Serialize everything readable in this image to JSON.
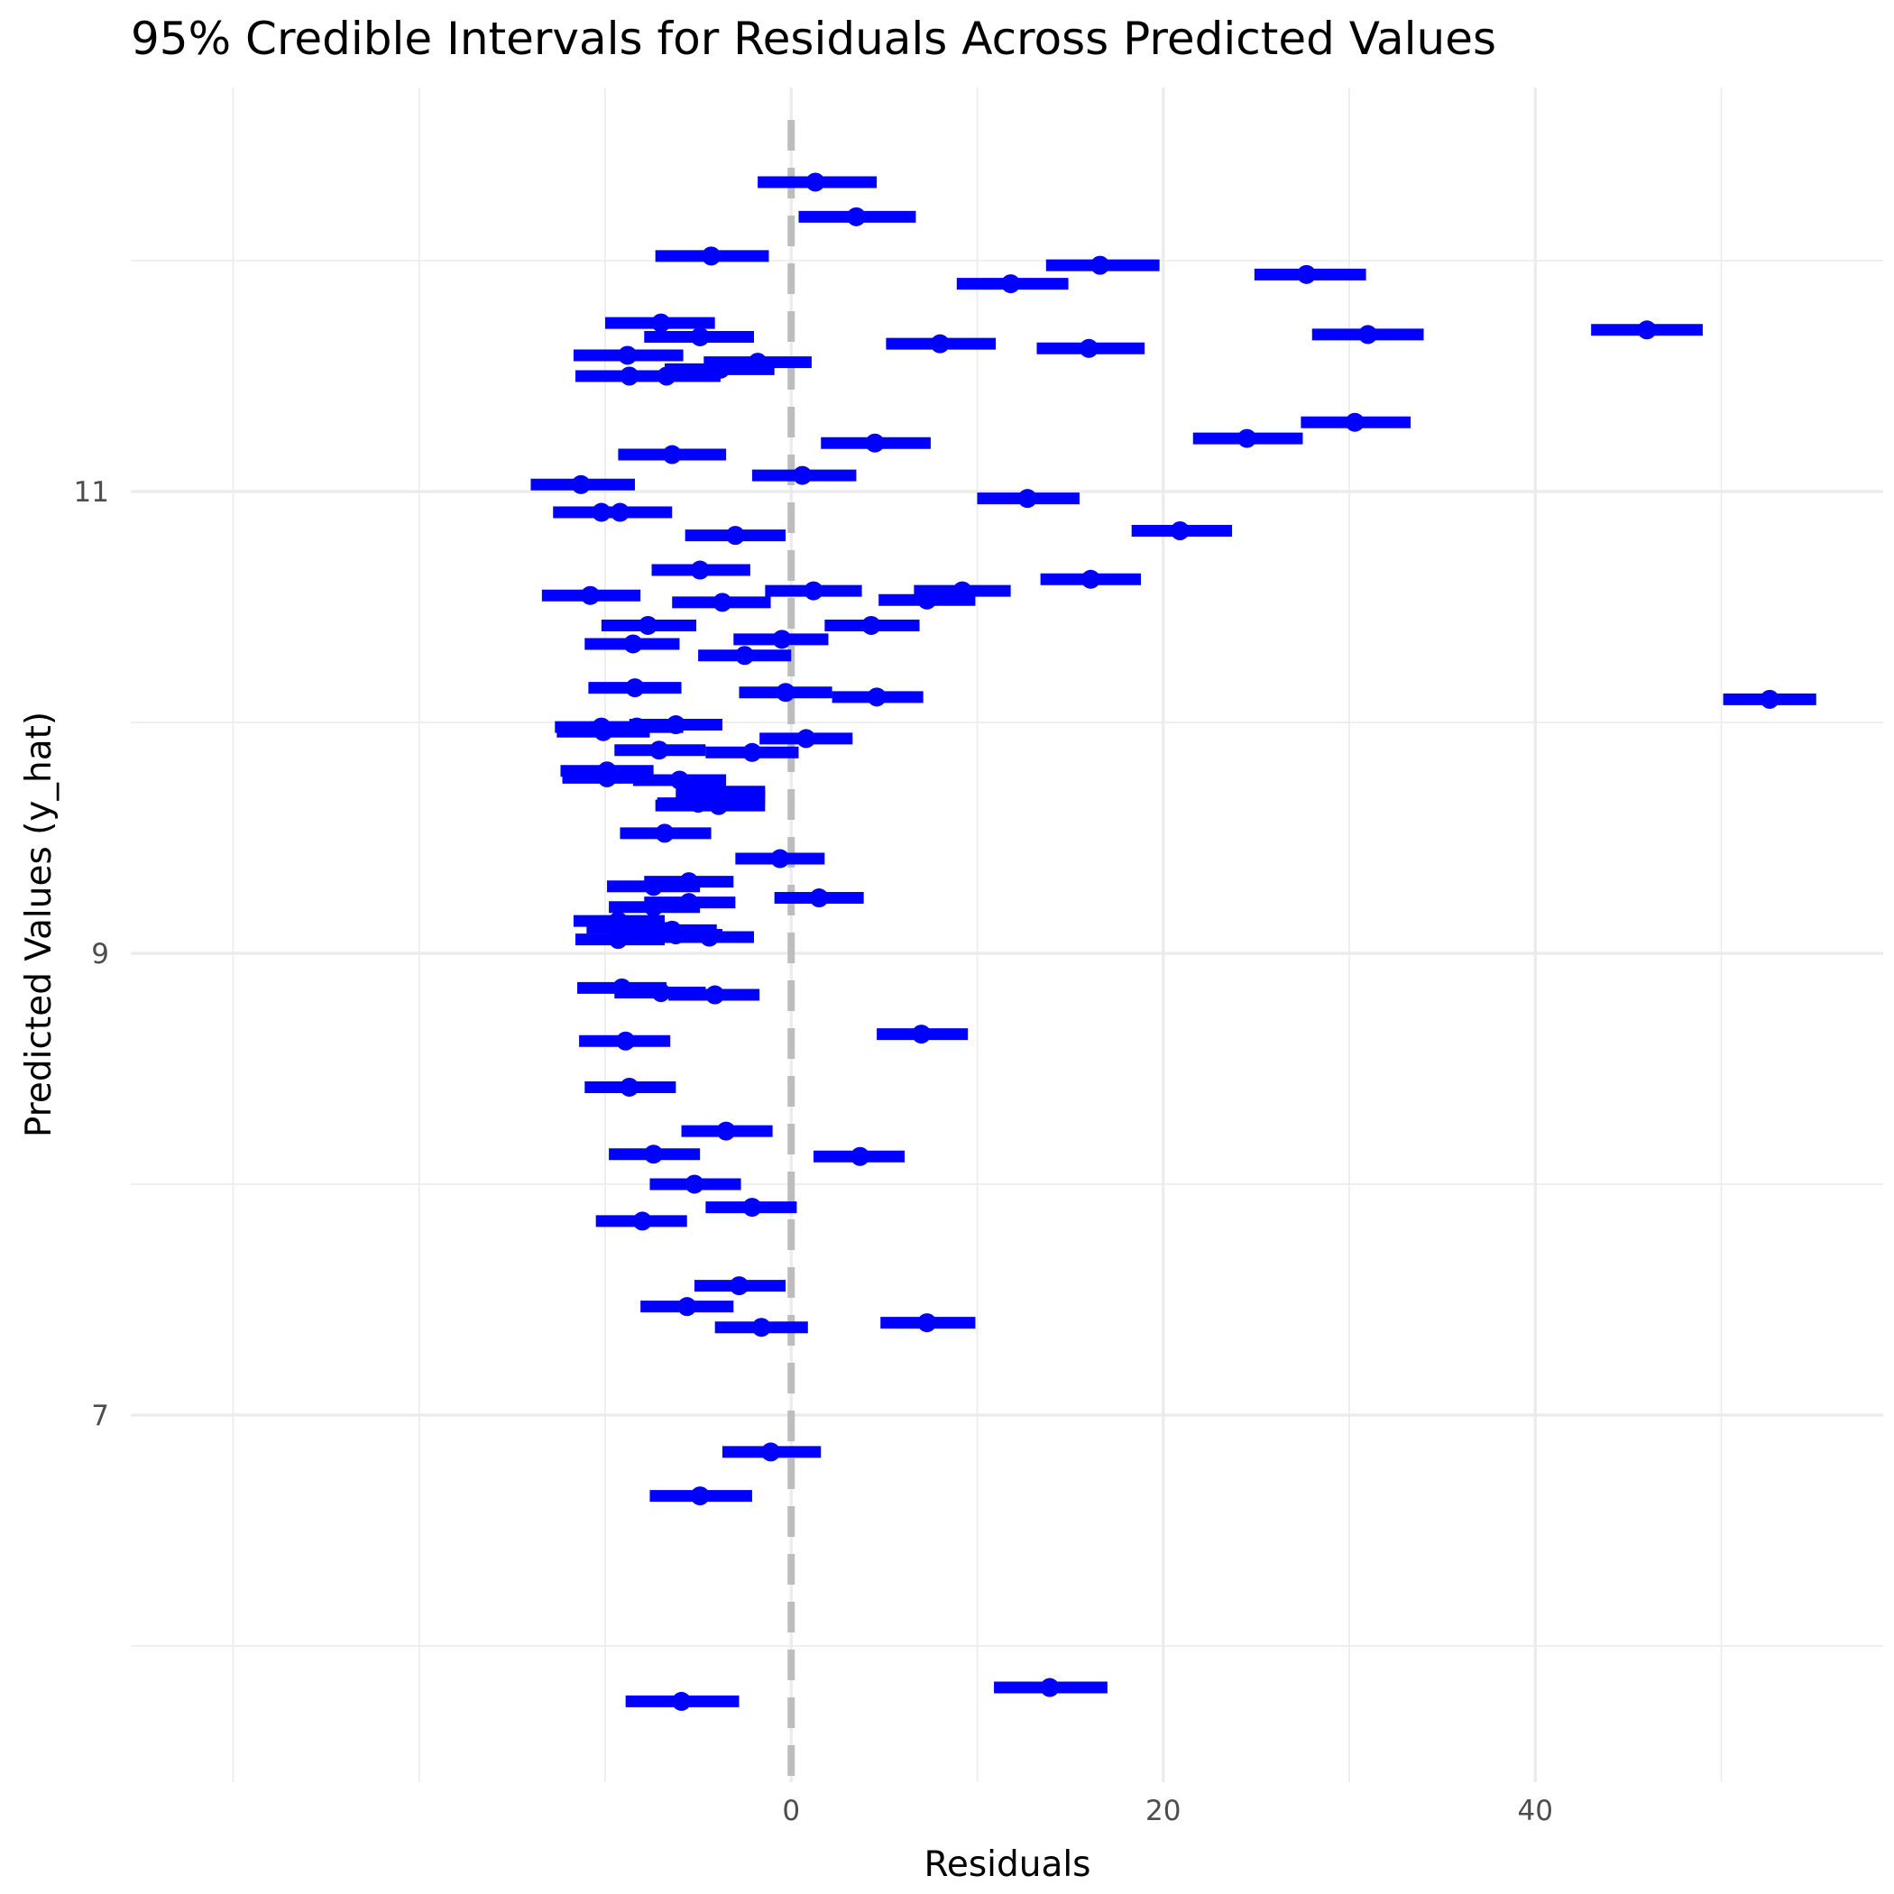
{
  "chart_data": {
    "type": "errorbar",
    "title": "95% Credible Intervals for Residuals Across Predicted Values",
    "xlabel": "Residuals",
    "ylabel": "Predicted Values (y_hat)",
    "x_ticks": [
      0,
      20,
      40
    ],
    "y_ticks": [
      7,
      9,
      11
    ],
    "xlim": [
      -35.5,
      58.7
    ],
    "ylim": [
      5.41,
      12.75
    ],
    "grid": true,
    "reference_line": {
      "x": 0,
      "style": "dashed",
      "color": "#bdbdbd"
    },
    "colors": {
      "interval": "#0000ff",
      "point": "#0000ff",
      "grid": "#ebebeb"
    },
    "points": [
      {
        "y": 12.34,
        "x": 1.3,
        "lo": -1.8,
        "hi": 4.6
      },
      {
        "y": 12.19,
        "x": 3.5,
        "lo": 0.4,
        "hi": 6.7
      },
      {
        "y": 12.02,
        "x": -4.3,
        "lo": -7.3,
        "hi": -1.2
      },
      {
        "y": 11.98,
        "x": 16.6,
        "lo": 13.7,
        "hi": 19.8
      },
      {
        "y": 11.94,
        "x": 27.7,
        "lo": 24.9,
        "hi": 30.9
      },
      {
        "y": 11.9,
        "x": 11.8,
        "lo": 8.9,
        "hi": 14.9
      },
      {
        "y": 11.73,
        "x": -7.0,
        "lo": -10.0,
        "hi": -4.1
      },
      {
        "y": 11.7,
        "x": 46.0,
        "lo": 43.0,
        "hi": 49.0
      },
      {
        "y": 11.68,
        "x": 31.0,
        "lo": 28.0,
        "hi": 34.0
      },
      {
        "y": 11.67,
        "x": -4.9,
        "lo": -7.9,
        "hi": -2.0
      },
      {
        "y": 11.64,
        "x": 8.0,
        "lo": 5.1,
        "hi": 11.0
      },
      {
        "y": 11.62,
        "x": 16.0,
        "lo": 13.2,
        "hi": 19.0
      },
      {
        "y": 11.59,
        "x": -8.8,
        "lo": -11.7,
        "hi": -5.8
      },
      {
        "y": 11.56,
        "x": -1.8,
        "lo": -4.7,
        "hi": 1.1
      },
      {
        "y": 11.53,
        "x": -3.8,
        "lo": -6.8,
        "hi": -0.9
      },
      {
        "y": 11.5,
        "x": -8.7,
        "lo": -11.6,
        "hi": -5.7
      },
      {
        "y": 11.5,
        "x": -6.7,
        "lo": -9.6,
        "hi": -3.8
      },
      {
        "y": 11.3,
        "x": 30.3,
        "lo": 27.4,
        "hi": 33.3
      },
      {
        "y": 11.23,
        "x": 24.5,
        "lo": 21.6,
        "hi": 27.5
      },
      {
        "y": 11.21,
        "x": 4.5,
        "lo": 1.6,
        "hi": 7.5
      },
      {
        "y": 11.16,
        "x": -6.4,
        "lo": -9.3,
        "hi": -3.5
      },
      {
        "y": 11.07,
        "x": 0.6,
        "lo": -2.1,
        "hi": 3.5
      },
      {
        "y": 11.03,
        "x": -11.3,
        "lo": -14.0,
        "hi": -8.4
      },
      {
        "y": 10.97,
        "x": 12.7,
        "lo": 10.0,
        "hi": 15.5
      },
      {
        "y": 10.91,
        "x": -10.2,
        "lo": -12.8,
        "hi": -7.2
      },
      {
        "y": 10.91,
        "x": -9.2,
        "lo": -11.8,
        "hi": -6.4
      },
      {
        "y": 10.83,
        "x": 20.9,
        "lo": 18.3,
        "hi": 23.7
      },
      {
        "y": 10.81,
        "x": -3.0,
        "lo": -5.7,
        "hi": -0.3
      },
      {
        "y": 10.66,
        "x": -4.9,
        "lo": -7.5,
        "hi": -2.2
      },
      {
        "y": 10.62,
        "x": 16.1,
        "lo": 13.4,
        "hi": 18.8
      },
      {
        "y": 10.57,
        "x": 1.2,
        "lo": -1.4,
        "hi": 3.8
      },
      {
        "y": 10.57,
        "x": 9.2,
        "lo": 6.6,
        "hi": 11.8
      },
      {
        "y": 10.55,
        "x": -10.8,
        "lo": -13.4,
        "hi": -8.1
      },
      {
        "y": 10.53,
        "x": 7.3,
        "lo": 4.7,
        "hi": 9.9
      },
      {
        "y": 10.52,
        "x": -3.7,
        "lo": -6.4,
        "hi": -1.1
      },
      {
        "y": 10.42,
        "x": -7.7,
        "lo": -10.2,
        "hi": -5.1
      },
      {
        "y": 10.42,
        "x": 4.3,
        "lo": 1.8,
        "hi": 6.9
      },
      {
        "y": 10.36,
        "x": -0.5,
        "lo": -3.1,
        "hi": 2.0
      },
      {
        "y": 10.34,
        "x": -8.5,
        "lo": -11.1,
        "hi": -6.0
      },
      {
        "y": 10.29,
        "x": -2.5,
        "lo": -5.0,
        "hi": 0.0
      },
      {
        "y": 10.15,
        "x": -8.4,
        "lo": -10.9,
        "hi": -5.9
      },
      {
        "y": 10.13,
        "x": -0.3,
        "lo": -2.8,
        "hi": 2.2
      },
      {
        "y": 10.11,
        "x": 4.6,
        "lo": 2.2,
        "hi": 7.1
      },
      {
        "y": 10.1,
        "x": 52.6,
        "lo": 50.1,
        "hi": 55.1
      },
      {
        "y": 9.99,
        "x": -6.2,
        "lo": -8.7,
        "hi": -3.7
      },
      {
        "y": 9.98,
        "x": -8.3,
        "lo": -10.8,
        "hi": -5.8
      },
      {
        "y": 9.98,
        "x": -10.2,
        "lo": -12.7,
        "hi": -7.7
      },
      {
        "y": 9.96,
        "x": -10.1,
        "lo": -12.6,
        "hi": -7.6
      },
      {
        "y": 9.93,
        "x": 0.8,
        "lo": -1.7,
        "hi": 3.3
      },
      {
        "y": 9.88,
        "x": -7.1,
        "lo": -9.5,
        "hi": -4.6
      },
      {
        "y": 9.87,
        "x": -2.1,
        "lo": -4.6,
        "hi": 0.4
      },
      {
        "y": 9.79,
        "x": -9.9,
        "lo": -12.4,
        "hi": -7.4
      },
      {
        "y": 9.76,
        "x": -9.9,
        "lo": -12.3,
        "hi": -7.4
      },
      {
        "y": 9.75,
        "x": -6.0,
        "lo": -8.5,
        "hi": -3.5
      },
      {
        "y": 9.7,
        "x": -4.3,
        "lo": -6.2,
        "hi": -1.4
      },
      {
        "y": 9.68,
        "x": -3.8,
        "lo": -6.2,
        "hi": -1.4
      },
      {
        "y": 9.65,
        "x": -5.0,
        "lo": -7.2,
        "hi": -2.8
      },
      {
        "y": 9.64,
        "x": -3.9,
        "lo": -7.3,
        "hi": -1.4
      },
      {
        "y": 9.52,
        "x": -6.8,
        "lo": -9.2,
        "hi": -4.3
      },
      {
        "y": 9.41,
        "x": -0.6,
        "lo": -3.0,
        "hi": 1.8
      },
      {
        "y": 9.31,
        "x": -5.5,
        "lo": -7.9,
        "hi": -3.1
      },
      {
        "y": 9.29,
        "x": -7.4,
        "lo": -9.9,
        "hi": -4.9
      },
      {
        "y": 9.24,
        "x": 1.5,
        "lo": -0.9,
        "hi": 3.9
      },
      {
        "y": 9.22,
        "x": -5.5,
        "lo": -7.9,
        "hi": -3.0
      },
      {
        "y": 9.2,
        "x": -7.4,
        "lo": -9.8,
        "hi": -4.9
      },
      {
        "y": 9.14,
        "x": -9.3,
        "lo": -11.7,
        "hi": -6.8
      },
      {
        "y": 9.11,
        "x": -8.5,
        "lo": -11.0,
        "hi": -6.1
      },
      {
        "y": 9.1,
        "x": -6.4,
        "lo": -8.9,
        "hi": -4.0
      },
      {
        "y": 9.08,
        "x": -6.2,
        "lo": -8.6,
        "hi": -3.7
      },
      {
        "y": 9.07,
        "x": -4.4,
        "lo": -6.8,
        "hi": -2.0
      },
      {
        "y": 9.06,
        "x": -9.3,
        "lo": -11.6,
        "hi": -6.8
      },
      {
        "y": 8.85,
        "x": -9.1,
        "lo": -11.5,
        "hi": -6.7
      },
      {
        "y": 8.83,
        "x": -7.0,
        "lo": -9.5,
        "hi": -4.6
      },
      {
        "y": 8.82,
        "x": -4.1,
        "lo": -6.6,
        "hi": -1.7
      },
      {
        "y": 8.65,
        "x": 7.0,
        "lo": 4.6,
        "hi": 9.5
      },
      {
        "y": 8.62,
        "x": -8.9,
        "lo": -11.4,
        "hi": -6.5
      },
      {
        "y": 8.42,
        "x": -8.7,
        "lo": -11.1,
        "hi": -6.2
      },
      {
        "y": 8.23,
        "x": -3.5,
        "lo": -5.9,
        "hi": -1.0
      },
      {
        "y": 8.13,
        "x": -7.4,
        "lo": -9.8,
        "hi": -4.9
      },
      {
        "y": 8.12,
        "x": 3.7,
        "lo": 1.2,
        "hi": 6.1
      },
      {
        "y": 8.0,
        "x": -5.2,
        "lo": -7.6,
        "hi": -2.7
      },
      {
        "y": 7.9,
        "x": -2.1,
        "lo": -4.6,
        "hi": 0.3
      },
      {
        "y": 7.84,
        "x": -8.0,
        "lo": -10.5,
        "hi": -5.6
      },
      {
        "y": 7.56,
        "x": -2.8,
        "lo": -5.2,
        "hi": -0.3
      },
      {
        "y": 7.47,
        "x": -5.6,
        "lo": -8.1,
        "hi": -3.1
      },
      {
        "y": 7.4,
        "x": 7.3,
        "lo": 4.8,
        "hi": 9.9
      },
      {
        "y": 7.38,
        "x": -1.6,
        "lo": -4.1,
        "hi": 0.9
      },
      {
        "y": 6.84,
        "x": -1.1,
        "lo": -3.7,
        "hi": 1.6
      },
      {
        "y": 6.65,
        "x": -4.9,
        "lo": -7.6,
        "hi": -2.1
      },
      {
        "y": 5.82,
        "x": 13.9,
        "lo": 10.9,
        "hi": 17.0
      },
      {
        "y": 5.76,
        "x": -5.9,
        "lo": -8.9,
        "hi": -2.8
      }
    ]
  }
}
